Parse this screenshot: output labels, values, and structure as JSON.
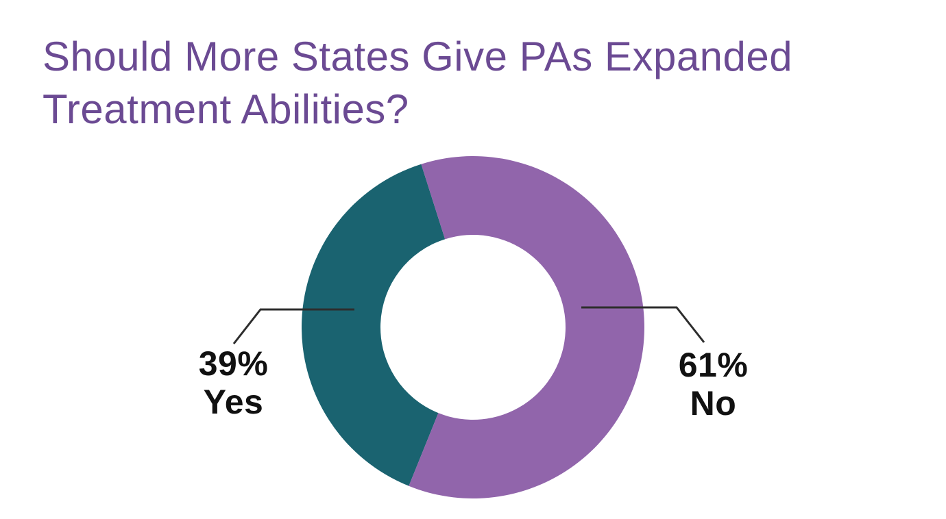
{
  "page": {
    "background_color": "#ffffff",
    "title": "Should More States Give PAs Expanded Treatment Abilities?",
    "title_color": "#6b4a93"
  },
  "chart_data": {
    "type": "pie",
    "variant": "donut",
    "title": "Should More States Give PAs Expanded Treatment Abilities?",
    "slices": [
      {
        "label": "Yes",
        "value": 39,
        "percent_text": "39%",
        "color": "#1a6370"
      },
      {
        "label": "No",
        "value": 61,
        "percent_text": "61%",
        "color": "#9165ab"
      }
    ],
    "start_angle_deg": 202,
    "inner_radius_ratio": 0.54,
    "label_color": "#111111",
    "leader_line_color": "#2d2d2d",
    "legend_position": "none",
    "annotations": "percent + category labels with angled leader lines left and right of donut"
  }
}
